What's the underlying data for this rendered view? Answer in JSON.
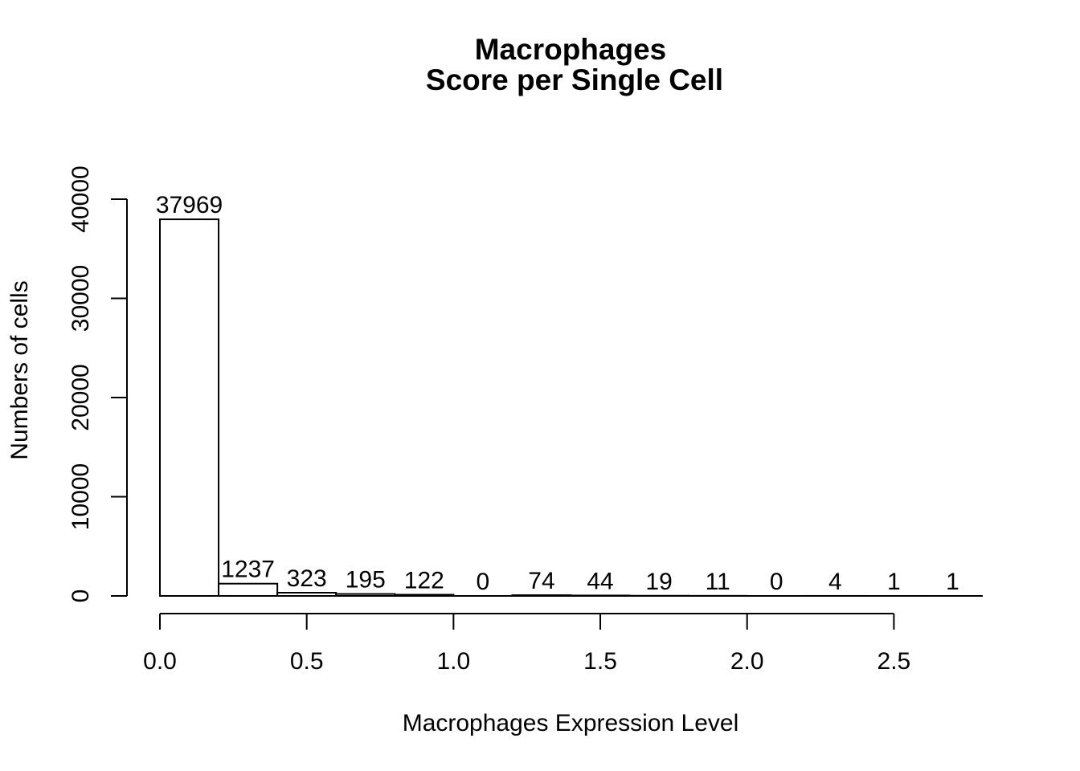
{
  "chart_data": {
    "type": "bar",
    "title": "Macrophages",
    "subtitle": "Score per Single Cell",
    "xlabel": "Macrophages Expression Level",
    "ylabel": "Numbers of cells",
    "bin_edges": [
      0.0,
      0.2,
      0.4,
      0.6,
      0.8,
      1.0,
      1.2,
      1.4,
      1.6,
      1.8,
      2.0,
      2.2,
      2.4,
      2.6,
      2.8
    ],
    "values": [
      37969,
      1237,
      323,
      195,
      122,
      0,
      74,
      44,
      19,
      11,
      0,
      4,
      1,
      1
    ],
    "data_labels": [
      "37969",
      "1237",
      "323",
      "195",
      "122",
      "0",
      "74",
      "44",
      "19",
      "11",
      "0",
      "4",
      "1",
      "1"
    ],
    "xlim": [
      0.0,
      2.8
    ],
    "ylim": [
      0,
      40000
    ],
    "x_ticks": [
      0.0,
      0.5,
      1.0,
      1.5,
      2.0,
      2.5
    ],
    "x_tick_labels": [
      "0.0",
      "0.5",
      "1.0",
      "1.5",
      "2.0",
      "2.5"
    ],
    "y_ticks": [
      0,
      10000,
      20000,
      30000,
      40000
    ],
    "y_tick_labels": [
      "0",
      "10000",
      "20000",
      "30000",
      "40000"
    ],
    "grid": false,
    "bar_fill": "#ffffff",
    "bar_stroke": "#000000"
  }
}
